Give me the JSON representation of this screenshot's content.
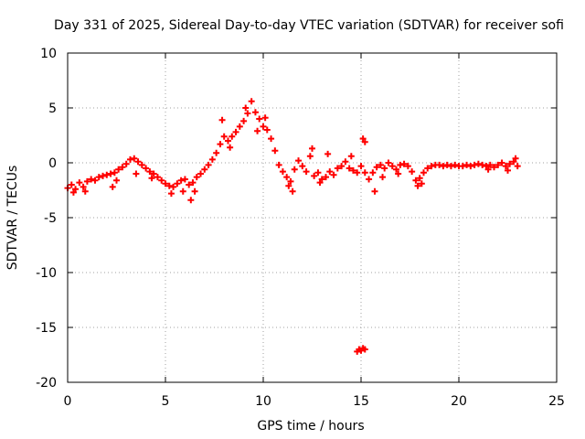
{
  "chart_data": {
    "type": "scatter",
    "title": "Day 331 of 2025, Sidereal Day-to-day VTEC variation (SDTVAR) for receiver sofi",
    "xlabel": "GPS time / hours",
    "ylabel": "SDTVAR / TECUs",
    "xlim": [
      0,
      25
    ],
    "ylim": [
      -20,
      10
    ],
    "xticks": [
      0,
      5,
      10,
      15,
      20,
      25
    ],
    "yticks": [
      -20,
      -15,
      -10,
      -5,
      0,
      5,
      10
    ],
    "grid": true,
    "marker": "+",
    "color": "#ff0000",
    "series": [
      {
        "name": "SDTVAR",
        "points": [
          [
            0.0,
            -2.3
          ],
          [
            0.2,
            -2.0
          ],
          [
            0.4,
            -2.4
          ],
          [
            0.6,
            -1.8
          ],
          [
            0.8,
            -2.2
          ],
          [
            1.0,
            -1.7
          ],
          [
            1.2,
            -1.5
          ],
          [
            1.4,
            -1.6
          ],
          [
            1.6,
            -1.3
          ],
          [
            1.8,
            -1.2
          ],
          [
            2.0,
            -1.1
          ],
          [
            2.2,
            -1.0
          ],
          [
            2.4,
            -0.9
          ],
          [
            2.6,
            -0.6
          ],
          [
            2.8,
            -0.4
          ],
          [
            3.0,
            -0.1
          ],
          [
            3.2,
            0.3
          ],
          [
            3.4,
            0.4
          ],
          [
            3.6,
            0.1
          ],
          [
            3.8,
            -0.2
          ],
          [
            4.0,
            -0.5
          ],
          [
            4.2,
            -0.8
          ],
          [
            4.4,
            -1.0
          ],
          [
            4.6,
            -1.3
          ],
          [
            4.8,
            -1.6
          ],
          [
            5.0,
            -1.9
          ],
          [
            5.2,
            -2.1
          ],
          [
            5.4,
            -2.2
          ],
          [
            5.6,
            -1.9
          ],
          [
            5.8,
            -1.6
          ],
          [
            6.0,
            -1.5
          ],
          [
            6.2,
            -2.0
          ],
          [
            6.4,
            -1.8
          ],
          [
            6.6,
            -1.3
          ],
          [
            6.8,
            -1.0
          ],
          [
            7.0,
            -0.6
          ],
          [
            7.2,
            -0.2
          ],
          [
            7.4,
            0.3
          ],
          [
            7.6,
            0.9
          ],
          [
            7.8,
            1.7
          ],
          [
            8.0,
            2.4
          ],
          [
            8.2,
            2.0
          ],
          [
            8.4,
            2.4
          ],
          [
            8.6,
            2.8
          ],
          [
            8.8,
            3.3
          ],
          [
            9.0,
            3.8
          ],
          [
            9.2,
            4.5
          ],
          [
            9.4,
            5.6
          ],
          [
            9.6,
            4.6
          ],
          [
            9.8,
            4.0
          ],
          [
            10.0,
            3.3
          ],
          [
            10.2,
            3.0
          ],
          [
            10.4,
            2.2
          ],
          [
            10.6,
            1.1
          ],
          [
            10.8,
            -0.2
          ],
          [
            11.0,
            -0.8
          ],
          [
            11.2,
            -1.3
          ],
          [
            11.4,
            -1.7
          ],
          [
            11.6,
            -0.6
          ],
          [
            11.8,
            0.2
          ],
          [
            12.0,
            -0.3
          ],
          [
            12.2,
            -0.8
          ],
          [
            12.4,
            0.6
          ],
          [
            12.6,
            -1.2
          ],
          [
            12.8,
            -0.9
          ],
          [
            13.0,
            -1.5
          ],
          [
            13.2,
            -1.3
          ],
          [
            13.4,
            -0.8
          ],
          [
            13.6,
            -1.1
          ],
          [
            13.8,
            -0.5
          ],
          [
            14.0,
            -0.3
          ],
          [
            14.2,
            0.1
          ],
          [
            14.4,
            -0.5
          ],
          [
            14.6,
            -0.7
          ],
          [
            14.8,
            -0.9
          ],
          [
            15.0,
            -0.3
          ],
          [
            15.2,
            -0.9
          ],
          [
            15.4,
            -1.5
          ],
          [
            15.6,
            -0.9
          ],
          [
            15.8,
            -0.4
          ],
          [
            16.0,
            -0.2
          ],
          [
            16.2,
            -0.5
          ],
          [
            16.4,
            0.0
          ],
          [
            16.6,
            -0.3
          ],
          [
            16.8,
            -0.6
          ],
          [
            17.0,
            -0.2
          ],
          [
            17.2,
            -0.1
          ],
          [
            17.4,
            -0.3
          ],
          [
            17.6,
            -0.8
          ],
          [
            17.8,
            -1.6
          ],
          [
            18.0,
            -1.4
          ],
          [
            18.2,
            -0.9
          ],
          [
            18.4,
            -0.5
          ],
          [
            18.6,
            -0.3
          ],
          [
            18.8,
            -0.2
          ],
          [
            19.0,
            -0.2
          ],
          [
            19.2,
            -0.3
          ],
          [
            19.4,
            -0.2
          ],
          [
            19.6,
            -0.3
          ],
          [
            19.8,
            -0.2
          ],
          [
            20.0,
            -0.3
          ],
          [
            20.2,
            -0.3
          ],
          [
            20.4,
            -0.2
          ],
          [
            20.6,
            -0.3
          ],
          [
            20.8,
            -0.2
          ],
          [
            21.0,
            -0.1
          ],
          [
            21.2,
            -0.2
          ],
          [
            21.4,
            -0.3
          ],
          [
            21.6,
            -0.2
          ],
          [
            21.8,
            -0.4
          ],
          [
            22.0,
            -0.2
          ],
          [
            22.2,
            0.0
          ],
          [
            22.4,
            -0.3
          ],
          [
            22.6,
            -0.1
          ],
          [
            22.8,
            0.1
          ],
          [
            23.0,
            -0.3
          ],
          [
            0.3,
            -2.7
          ],
          [
            0.9,
            -2.6
          ],
          [
            2.3,
            -2.2
          ],
          [
            2.5,
            -1.6
          ],
          [
            3.5,
            -1.0
          ],
          [
            4.3,
            -1.4
          ],
          [
            5.3,
            -2.8
          ],
          [
            5.9,
            -2.6
          ],
          [
            6.3,
            -3.4
          ],
          [
            6.5,
            -2.6
          ],
          [
            7.9,
            3.9
          ],
          [
            8.3,
            1.4
          ],
          [
            9.1,
            5.0
          ],
          [
            9.7,
            2.9
          ],
          [
            10.1,
            4.1
          ],
          [
            11.3,
            -2.1
          ],
          [
            11.5,
            -2.6
          ],
          [
            12.5,
            1.3
          ],
          [
            12.9,
            -1.8
          ],
          [
            13.3,
            0.8
          ],
          [
            14.5,
            0.6
          ],
          [
            15.1,
            2.2
          ],
          [
            15.2,
            1.9
          ],
          [
            15.7,
            -2.6
          ],
          [
            16.1,
            -1.3
          ],
          [
            16.9,
            -1.0
          ],
          [
            17.9,
            -2.1
          ],
          [
            18.1,
            -1.9
          ],
          [
            21.5,
            -0.6
          ],
          [
            22.5,
            -0.7
          ],
          [
            22.9,
            0.4
          ],
          [
            14.9,
            -17.0
          ],
          [
            15.0,
            -17.1
          ],
          [
            15.1,
            -16.9
          ],
          [
            14.8,
            -17.2
          ],
          [
            15.2,
            -17.0
          ]
        ]
      }
    ]
  }
}
